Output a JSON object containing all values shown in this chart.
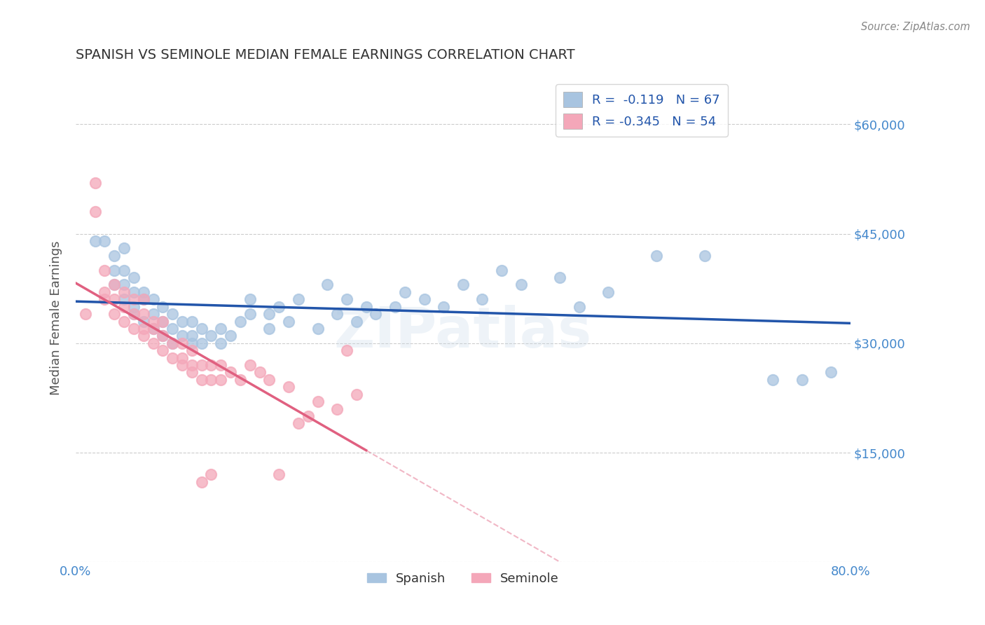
{
  "title": "SPANISH VS SEMINOLE MEDIAN FEMALE EARNINGS CORRELATION CHART",
  "source": "Source: ZipAtlas.com",
  "xlabel": "",
  "ylabel": "Median Female Earnings",
  "xlim": [
    0.0,
    0.8
  ],
  "ylim": [
    0,
    67000
  ],
  "yticks": [
    0,
    15000,
    30000,
    45000,
    60000
  ],
  "ytick_labels": [
    "",
    "$15,000",
    "$30,000",
    "$45,000",
    "$60,000"
  ],
  "xticks": [
    0.0,
    0.1,
    0.2,
    0.3,
    0.4,
    0.5,
    0.6,
    0.7,
    0.8
  ],
  "xtick_labels": [
    "0.0%",
    "",
    "",
    "",
    "",
    "",
    "",
    "",
    "80.0%"
  ],
  "spanish_R": -0.119,
  "spanish_N": 67,
  "seminole_R": -0.345,
  "seminole_N": 54,
  "spanish_color": "#a8c4e0",
  "seminole_color": "#f4a7b9",
  "spanish_line_color": "#2255aa",
  "seminole_line_color": "#e06080",
  "background_color": "#ffffff",
  "grid_color": "#cccccc",
  "watermark": "ZIPatlas",
  "title_color": "#333333",
  "axis_label_color": "#4488cc",
  "spanish_x": [
    0.02,
    0.03,
    0.04,
    0.04,
    0.04,
    0.05,
    0.05,
    0.05,
    0.05,
    0.06,
    0.06,
    0.06,
    0.06,
    0.07,
    0.07,
    0.07,
    0.08,
    0.08,
    0.08,
    0.09,
    0.09,
    0.09,
    0.1,
    0.1,
    0.1,
    0.11,
    0.11,
    0.12,
    0.12,
    0.12,
    0.13,
    0.13,
    0.14,
    0.15,
    0.15,
    0.16,
    0.17,
    0.18,
    0.18,
    0.2,
    0.2,
    0.21,
    0.22,
    0.23,
    0.25,
    0.26,
    0.27,
    0.28,
    0.29,
    0.3,
    0.31,
    0.33,
    0.34,
    0.36,
    0.38,
    0.4,
    0.42,
    0.44,
    0.46,
    0.5,
    0.52,
    0.55,
    0.6,
    0.65,
    0.72,
    0.75,
    0.78
  ],
  "spanish_y": [
    44000,
    44000,
    38000,
    40000,
    42000,
    36000,
    38000,
    40000,
    43000,
    34000,
    35000,
    37000,
    39000,
    33000,
    36000,
    37000,
    32000,
    34000,
    36000,
    31000,
    33000,
    35000,
    30000,
    32000,
    34000,
    31000,
    33000,
    30000,
    31000,
    33000,
    30000,
    32000,
    31000,
    30000,
    32000,
    31000,
    33000,
    34000,
    36000,
    32000,
    34000,
    35000,
    33000,
    36000,
    32000,
    38000,
    34000,
    36000,
    33000,
    35000,
    34000,
    35000,
    37000,
    36000,
    35000,
    38000,
    36000,
    40000,
    38000,
    39000,
    35000,
    37000,
    42000,
    42000,
    25000,
    25000,
    26000
  ],
  "seminole_x": [
    0.01,
    0.02,
    0.02,
    0.03,
    0.03,
    0.03,
    0.04,
    0.04,
    0.04,
    0.05,
    0.05,
    0.05,
    0.06,
    0.06,
    0.06,
    0.07,
    0.07,
    0.07,
    0.07,
    0.08,
    0.08,
    0.08,
    0.09,
    0.09,
    0.09,
    0.1,
    0.1,
    0.11,
    0.11,
    0.11,
    0.12,
    0.12,
    0.12,
    0.13,
    0.13,
    0.14,
    0.14,
    0.15,
    0.15,
    0.16,
    0.17,
    0.18,
    0.19,
    0.2,
    0.21,
    0.22,
    0.23,
    0.24,
    0.25,
    0.27,
    0.28,
    0.29,
    0.13,
    0.14
  ],
  "seminole_y": [
    34000,
    52000,
    48000,
    36000,
    37000,
    40000,
    34000,
    36000,
    38000,
    33000,
    35000,
    37000,
    32000,
    34000,
    36000,
    31000,
    32000,
    34000,
    36000,
    30000,
    32000,
    33000,
    29000,
    31000,
    33000,
    28000,
    30000,
    27000,
    28000,
    30000,
    26000,
    27000,
    29000,
    25000,
    27000,
    25000,
    27000,
    25000,
    27000,
    26000,
    25000,
    27000,
    26000,
    25000,
    12000,
    24000,
    19000,
    20000,
    22000,
    21000,
    29000,
    23000,
    11000,
    12000
  ]
}
